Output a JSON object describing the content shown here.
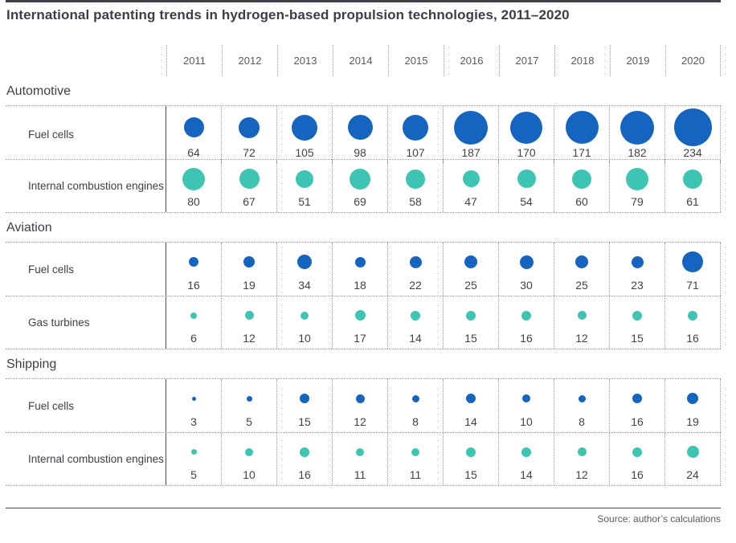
{
  "title": "International patenting trends in hydrogen-based propulsion technologies, 2011–2020",
  "source": "Source: author’s calculations",
  "colors": {
    "fuel_cells_blue": "#1565C0",
    "combustion_teal": "#3EC4B3"
  },
  "chart_data": {
    "type": "bubble-matrix",
    "title": "International patenting trends in hydrogen-based propulsion technologies, 2011–2020",
    "x_categories": [
      "2011",
      "2012",
      "2013",
      "2014",
      "2015",
      "2016",
      "2017",
      "2018",
      "2019",
      "2020"
    ],
    "legend_position": "none",
    "grid": "dotted",
    "sections": [
      {
        "name": "Automotive",
        "rows": [
          {
            "label": "Fuel cells",
            "color_key": "fuel_cells_blue",
            "values": [
              64,
              72,
              105,
              98,
              107,
              187,
              170,
              171,
              182,
              234
            ]
          },
          {
            "label": "Internal combustion engines",
            "color_key": "combustion_teal",
            "values": [
              80,
              67,
              51,
              69,
              58,
              47,
              54,
              60,
              79,
              61
            ]
          }
        ]
      },
      {
        "name": "Aviation",
        "rows": [
          {
            "label": "Fuel cells",
            "color_key": "fuel_cells_blue",
            "values": [
              16,
              19,
              34,
              18,
              22,
              25,
              30,
              25,
              23,
              71
            ]
          },
          {
            "label": "Gas turbines",
            "color_key": "combustion_teal",
            "values": [
              6,
              12,
              10,
              17,
              14,
              15,
              16,
              12,
              15,
              16
            ]
          }
        ]
      },
      {
        "name": "Shipping",
        "rows": [
          {
            "label": "Fuel cells",
            "color_key": "fuel_cells_blue",
            "values": [
              3,
              5,
              15,
              12,
              8,
              14,
              10,
              8,
              16,
              19
            ]
          },
          {
            "label": "Internal combustion engines",
            "color_key": "combustion_teal",
            "values": [
              5,
              10,
              16,
              11,
              11,
              15,
              14,
              12,
              16,
              24
            ]
          }
        ]
      }
    ]
  }
}
